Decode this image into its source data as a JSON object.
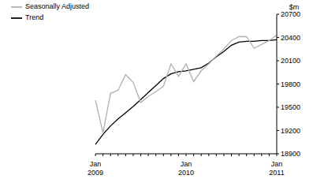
{
  "chart_data": {
    "type": "line",
    "y_label": "$m",
    "legend": "top-left",
    "grid": false,
    "categories": [
      "Jan 2009",
      null,
      null,
      null,
      null,
      null,
      null,
      null,
      null,
      null,
      null,
      null,
      "Jan 2010",
      null,
      null,
      null,
      null,
      null,
      null,
      null,
      null,
      null,
      null,
      null,
      "Jan 2011"
    ],
    "ylim": [
      18900,
      20700
    ],
    "yticks": [
      18900,
      19200,
      19500,
      19800,
      20100,
      20400,
      20700
    ],
    "series": [
      {
        "name": "Trend",
        "color": "#000000",
        "values": [
          19020,
          19150,
          19260,
          19350,
          19430,
          19510,
          19600,
          19690,
          19780,
          19870,
          19930,
          19960,
          19970,
          19990,
          20010,
          20070,
          20150,
          20220,
          20300,
          20340,
          20350,
          20350,
          20360,
          20360,
          20370
        ]
      },
      {
        "name": "Seasonally Adjusted",
        "color": "#b0b0b0",
        "values": [
          19590,
          19170,
          19680,
          19720,
          19920,
          19820,
          19560,
          19640,
          19700,
          19770,
          20060,
          19900,
          20060,
          19830,
          19970,
          20060,
          20160,
          20250,
          20360,
          20410,
          20410,
          20260,
          20310,
          20360,
          20430
        ]
      }
    ]
  }
}
